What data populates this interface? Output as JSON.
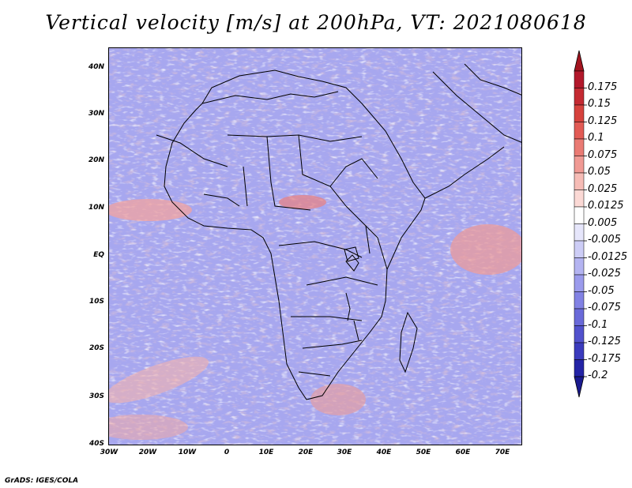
{
  "title": "Vertical velocity [m/s] at 200hPa, VT: 2021080618",
  "credit": "GrADS: IGES/COLA",
  "map": {
    "variable": "Vertical velocity",
    "units": "m/s",
    "level": "200hPa",
    "valid_time": "2021080618",
    "lon_range": [
      -30,
      75
    ],
    "lat_range": [
      -40,
      45
    ],
    "lat_ticks": [
      {
        "label": "40N",
        "value": 40
      },
      {
        "label": "30N",
        "value": 30
      },
      {
        "label": "20N",
        "value": 20
      },
      {
        "label": "10N",
        "value": 10
      },
      {
        "label": "EQ",
        "value": 0
      },
      {
        "label": "10S",
        "value": -10
      },
      {
        "label": "20S",
        "value": -20
      },
      {
        "label": "30S",
        "value": -30
      },
      {
        "label": "40S",
        "value": -40
      }
    ],
    "lon_ticks": [
      {
        "label": "30W",
        "value": -30
      },
      {
        "label": "20W",
        "value": -20
      },
      {
        "label": "10W",
        "value": -10
      },
      {
        "label": "0",
        "value": 0
      },
      {
        "label": "10E",
        "value": 10
      },
      {
        "label": "20E",
        "value": 20
      },
      {
        "label": "30E",
        "value": 30
      },
      {
        "label": "40E",
        "value": 40
      },
      {
        "label": "50E",
        "value": 50
      },
      {
        "label": "60E",
        "value": 60
      },
      {
        "label": "70E",
        "value": 70
      }
    ]
  },
  "colorbar": {
    "levels": [
      {
        "label": "0.175",
        "color": "#b2182b"
      },
      {
        "label": "0.15",
        "color": "#c42a32"
      },
      {
        "label": "0.125",
        "color": "#d6423d"
      },
      {
        "label": "0.1",
        "color": "#e25b55"
      },
      {
        "label": "0.075",
        "color": "#ea7b74"
      },
      {
        "label": "0.05",
        "color": "#f09a94"
      },
      {
        "label": "0.025",
        "color": "#f6bcb6"
      },
      {
        "label": "0.0125",
        "color": "#fbd9d5"
      },
      {
        "label": "0.005",
        "color": "#ffffff"
      },
      {
        "label": "-0.005",
        "color": "#e6e6fb"
      },
      {
        "label": "-0.0125",
        "color": "#cdcdf6"
      },
      {
        "label": "-0.025",
        "color": "#b4b4f1"
      },
      {
        "label": "-0.05",
        "color": "#9b9bec"
      },
      {
        "label": "-0.075",
        "color": "#8282e4"
      },
      {
        "label": "-0.1",
        "color": "#6a6ad9"
      },
      {
        "label": "-0.125",
        "color": "#5252cd"
      },
      {
        "label": "-0.175",
        "color": "#3b3bbd"
      },
      {
        "label": "-0.2",
        "color": "#2424a6"
      }
    ],
    "top_color": "#a3141f",
    "bottom_color": "#1a1a8f"
  }
}
